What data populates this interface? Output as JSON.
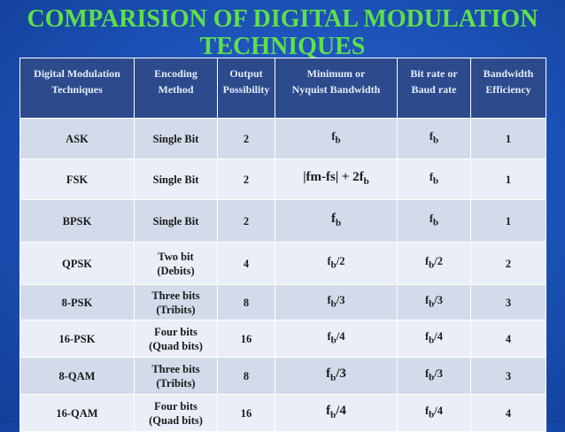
{
  "title": {
    "line1": "COMPARISION OF DIGITAL MODULATION",
    "line2": "TECHNIQUES"
  },
  "headers": [
    {
      "line1": "Digital Modulation",
      "line2": "Techniques"
    },
    {
      "line1": "Encoding",
      "line2": "Method"
    },
    {
      "line1": "Output",
      "line2": "Possibility"
    },
    {
      "line1": "Minimum or",
      "line2": "Nyquist Bandwidth"
    },
    {
      "line1": "Bit rate or",
      "line2": "Baud rate"
    },
    {
      "line1": "Bandwidth",
      "line2": "Efficiency"
    }
  ],
  "rows": [
    {
      "technique": "ASK",
      "encoding_l1": "Single Bit",
      "encoding_l2": "",
      "output": "2",
      "bw_main": "f",
      "bw_sub": "b",
      "bw_tail": "",
      "rate_main": "f",
      "rate_sub": "b",
      "rate_tail": "",
      "efficiency": "1"
    },
    {
      "technique": "FSK",
      "encoding_l1": "Single Bit",
      "encoding_l2": "",
      "output": "2",
      "bw_main": "|fm-fs| + 2f",
      "bw_sub": "b",
      "bw_tail": "",
      "rate_main": "f",
      "rate_sub": "b",
      "rate_tail": "",
      "efficiency": "1"
    },
    {
      "technique": "BPSK",
      "encoding_l1": "Single Bit",
      "encoding_l2": "",
      "output": "2",
      "bw_main": "f",
      "bw_sub": "b",
      "bw_tail": "",
      "rate_main": "f",
      "rate_sub": "b",
      "rate_tail": "",
      "efficiency": "1"
    },
    {
      "technique": "QPSK",
      "encoding_l1": "Two bit",
      "encoding_l2": "(Debits)",
      "output": "4",
      "bw_main": "f",
      "bw_sub": "b",
      "bw_tail": "/2",
      "rate_main": "f",
      "rate_sub": "b",
      "rate_tail": "/2",
      "efficiency": "2"
    },
    {
      "technique": "8-PSK",
      "encoding_l1": "Three bits",
      "encoding_l2": "(Tribits)",
      "output": "8",
      "bw_main": "f",
      "bw_sub": "b",
      "bw_tail": "/3",
      "rate_main": "f",
      "rate_sub": "b",
      "rate_tail": "/3",
      "efficiency": "3"
    },
    {
      "technique": "16-PSK",
      "encoding_l1": "Four bits",
      "encoding_l2": "(Quad bits)",
      "output": "16",
      "bw_main": "f",
      "bw_sub": "b",
      "bw_tail": "/4",
      "rate_main": "f",
      "rate_sub": "b",
      "rate_tail": "/4",
      "efficiency": "4"
    },
    {
      "technique": "8-QAM",
      "encoding_l1": "Three bits",
      "encoding_l2": "(Tribits)",
      "output": "8",
      "bw_main": "f",
      "bw_sub": "b",
      "bw_tail": "/3",
      "rate_main": "f",
      "rate_sub": "b",
      "rate_tail": "/3",
      "efficiency": "3"
    },
    {
      "technique": "16-QAM",
      "encoding_l1": "Four bits",
      "encoding_l2": "(Quad bits)",
      "output": "16",
      "bw_main": "f",
      "bw_sub": "b",
      "bw_tail": "/4",
      "rate_main": "f",
      "rate_sub": "b",
      "rate_tail": "/4",
      "efficiency": "4"
    }
  ]
}
